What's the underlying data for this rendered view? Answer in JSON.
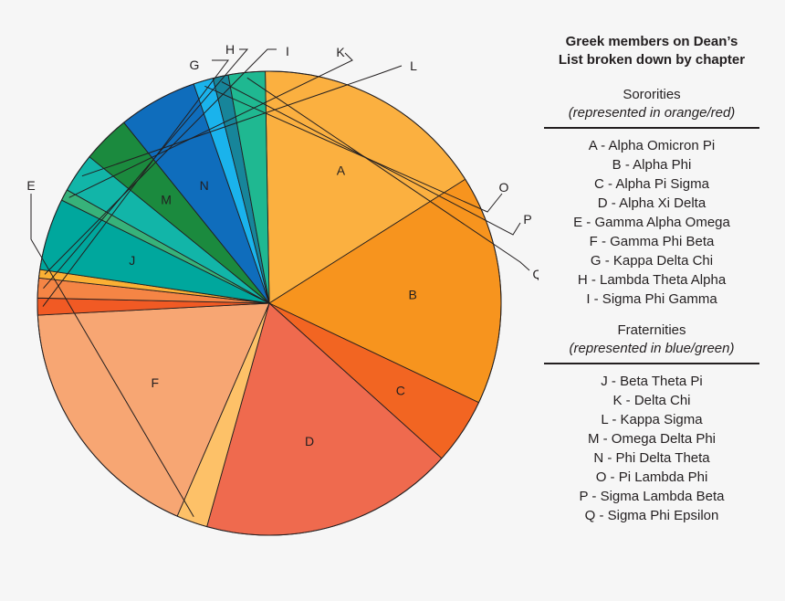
{
  "chart_data": {
    "type": "pie",
    "title": "Greek members on Dean’s List broken down by chapter",
    "legend_position": "right",
    "colors": {
      "A": "#fbb040",
      "B": "#f7941e",
      "C": "#f26522",
      "D": "#ef6a4e",
      "E": "#fdc168",
      "F": "#f7a673",
      "G": "#f15a24",
      "H": "#f58545",
      "I": "#fbb034",
      "J": "#00a79d",
      "K": "#37b27a",
      "L": "#12b5a8",
      "M": "#1b8a3e",
      "N": "#0f6dbc",
      "O": "#1ab3ec",
      "P": "#17859a",
      "Q": "#1fb891"
    },
    "slices": [
      {
        "key": "A",
        "value": 16.6
      },
      {
        "key": "B",
        "value": 16.3
      },
      {
        "key": "C",
        "value": 4.7
      },
      {
        "key": "D",
        "value": 18.0
      },
      {
        "key": "E",
        "value": 2.2
      },
      {
        "key": "F",
        "value": 18.0
      },
      {
        "key": "G",
        "value": 1.2
      },
      {
        "key": "H",
        "value": 1.4
      },
      {
        "key": "I",
        "value": 0.6
      },
      {
        "key": "J",
        "value": 5.1
      },
      {
        "key": "K",
        "value": 0.8
      },
      {
        "key": "L",
        "value": 2.8
      },
      {
        "key": "M",
        "value": 3.4
      },
      {
        "key": "N",
        "value": 5.6
      },
      {
        "key": "O",
        "value": 1.4
      },
      {
        "key": "P",
        "value": 1.1
      },
      {
        "key": "Q",
        "value": 2.6
      }
    ],
    "inside_labels": [
      "A",
      "B",
      "C",
      "D",
      "F",
      "J",
      "M",
      "N"
    ],
    "callout_labels": [
      "E",
      "G",
      "H",
      "I",
      "K",
      "L",
      "O",
      "P",
      "Q"
    ]
  },
  "legend": {
    "title_line1": "Greek members on Dean’s",
    "title_line2": "List broken down by chapter",
    "sororities": {
      "heading": "Sororities",
      "note": "(represented in orange/red)",
      "items": [
        "A - Alpha Omicron Pi",
        "B - Alpha Phi",
        "C - Alpha Pi Sigma",
        "D - Alpha Xi Delta",
        "E - Gamma Alpha Omega",
        "F - Gamma Phi Beta",
        "G - Kappa Delta Chi",
        "H - Lambda Theta Alpha",
        "I - Sigma Phi Gamma"
      ]
    },
    "fraternities": {
      "heading": "Fraternities",
      "note": "(represented in blue/green)",
      "items": [
        "J - Beta Theta Pi",
        "K - Delta Chi",
        "L - Kappa Sigma",
        "M - Omega Delta Phi",
        "N - Phi Delta Theta",
        "O - Pi Lambda Phi",
        "P - Sigma Lambda Beta",
        "Q - Sigma Phi Epsilon"
      ]
    }
  }
}
